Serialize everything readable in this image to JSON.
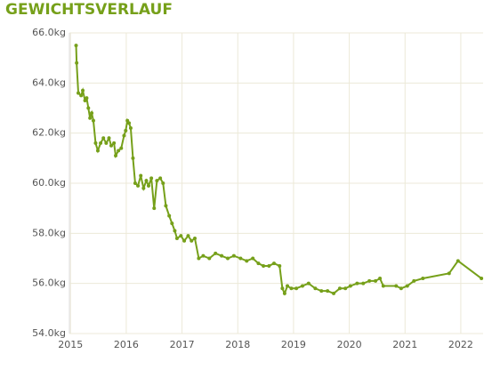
{
  "chart_data": {
    "type": "line",
    "title": "GEWICHTSVERLAUF",
    "x": [
      2015.1,
      2015.11,
      2015.14,
      2015.19,
      2015.22,
      2015.26,
      2015.29,
      2015.32,
      2015.35,
      2015.38,
      2015.41,
      2015.45,
      2015.49,
      2015.54,
      2015.59,
      2015.64,
      2015.69,
      2015.73,
      2015.78,
      2015.81,
      2015.86,
      2015.91,
      2015.96,
      2015.99,
      2016.02,
      2016.05,
      2016.08,
      2016.12,
      2016.16,
      2016.21,
      2016.26,
      2016.31,
      2016.36,
      2016.4,
      2016.45,
      2016.5,
      2016.55,
      2016.61,
      2016.66,
      2016.71,
      2016.77,
      2016.82,
      2016.87,
      2016.91,
      2016.98,
      2017.04,
      2017.11,
      2017.17,
      2017.23,
      2017.3,
      2017.38,
      2017.49,
      2017.6,
      2017.71,
      2017.82,
      2017.93,
      2018.05,
      2018.16,
      2018.27,
      2018.37,
      2018.46,
      2018.56,
      2018.65,
      2018.75,
      2018.8,
      2018.84,
      2018.89,
      2018.96,
      2019.05,
      2019.16,
      2019.27,
      2019.39,
      2019.5,
      2019.61,
      2019.72,
      2019.83,
      2019.93,
      2020.02,
      2020.14,
      2020.25,
      2020.36,
      2020.47,
      2020.55,
      2020.61,
      2020.84,
      2020.93,
      2021.04,
      2021.16,
      2021.32,
      2021.79,
      2021.95,
      2022.37
    ],
    "series": [
      {
        "name": "Gewicht",
        "color": "#76a01a",
        "values": [
          65.5,
          64.8,
          63.6,
          63.5,
          63.7,
          63.3,
          63.4,
          63.0,
          62.6,
          62.8,
          62.5,
          61.6,
          61.3,
          61.6,
          61.8,
          61.6,
          61.8,
          61.5,
          61.6,
          61.1,
          61.3,
          61.4,
          61.9,
          62.1,
          62.5,
          62.4,
          62.2,
          61.0,
          60.0,
          59.9,
          60.3,
          59.8,
          60.1,
          59.9,
          60.2,
          59.0,
          60.1,
          60.2,
          60.0,
          59.1,
          58.7,
          58.4,
          58.1,
          57.8,
          57.9,
          57.7,
          57.9,
          57.7,
          57.8,
          57.0,
          57.1,
          57.0,
          57.2,
          57.1,
          57.0,
          57.1,
          57.0,
          56.9,
          57.0,
          56.8,
          56.7,
          56.7,
          56.8,
          56.7,
          55.8,
          55.6,
          55.9,
          55.8,
          55.8,
          55.9,
          56.0,
          55.8,
          55.7,
          55.7,
          55.6,
          55.8,
          55.8,
          55.9,
          56.0,
          56.0,
          56.1,
          56.1,
          56.2,
          55.9,
          55.9,
          55.8,
          55.9,
          56.1,
          56.2,
          56.4,
          56.9,
          56.2
        ]
      }
    ],
    "xlim": [
      2014.98,
      2022.4
    ],
    "xticks": [
      2015,
      2016,
      2017,
      2018,
      2019,
      2020,
      2021,
      2022
    ],
    "ylim": [
      54,
      66
    ],
    "yticks": [
      {
        "value": 54,
        "label": "54.0kg"
      },
      {
        "value": 56,
        "label": "56.0kg"
      },
      {
        "value": 58,
        "label": "58.0kg"
      },
      {
        "value": 60,
        "label": "60.0kg"
      },
      {
        "value": 62,
        "label": "62.0kg"
      },
      {
        "value": 64,
        "label": "64.0kg"
      },
      {
        "value": 66,
        "label": "66.0kg"
      }
    ],
    "grid": true
  }
}
